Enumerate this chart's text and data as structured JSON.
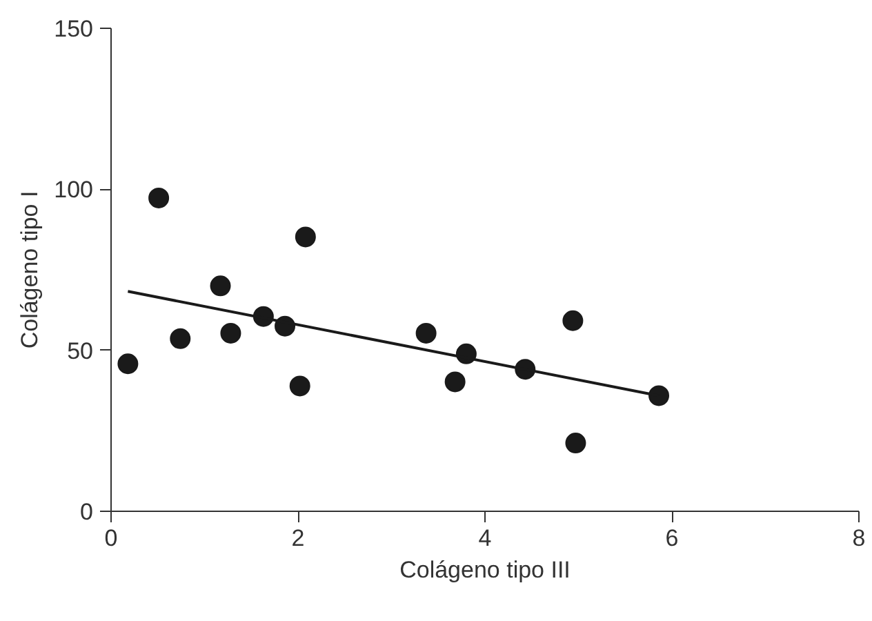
{
  "chart_data": {
    "type": "scatter",
    "xlabel": "Colágeno tipo III",
    "ylabel": "Colágeno tipo I",
    "xlim": [
      0,
      8
    ],
    "ylim": [
      0,
      150
    ],
    "xticks": [
      0,
      2,
      4,
      6,
      8
    ],
    "yticks": [
      0,
      50,
      100,
      150
    ],
    "grid": false,
    "marker": "circle",
    "series": [
      {
        "color": "#1a1a1a",
        "x": [
          0.18,
          0.51,
          0.74,
          1.17,
          1.28,
          1.63,
          1.86,
          2.02,
          2.08,
          3.37,
          3.68,
          3.8,
          4.43,
          4.94,
          4.97,
          5.86
        ],
        "values": [
          45.8,
          97.3,
          53.6,
          70,
          55.3,
          60.5,
          57.5,
          38.9,
          85.2,
          55.3,
          40.2,
          48.9,
          44.1,
          59.2,
          21.2,
          35.9
        ]
      },
      {
        "type": "line",
        "marker": "none",
        "color": "#1a1a1a",
        "x": [
          0.18,
          5.86
        ],
        "values": [
          68.3,
          35.9
        ]
      }
    ]
  }
}
